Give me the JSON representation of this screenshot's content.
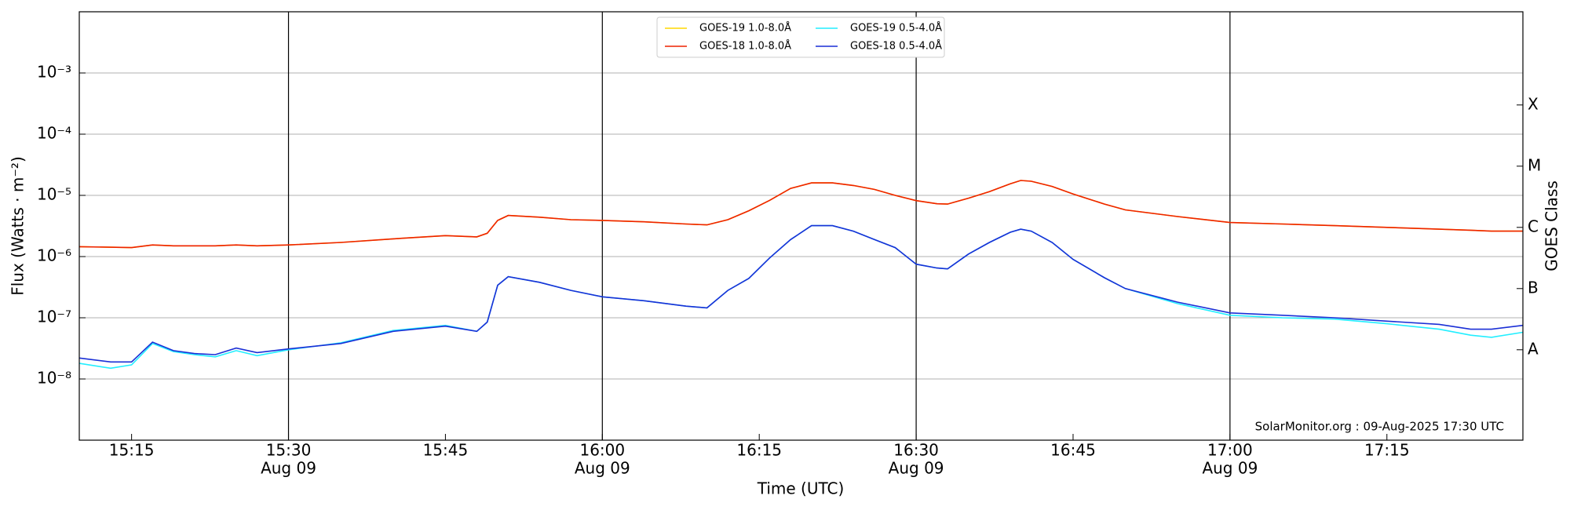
{
  "chart_data": {
    "type": "line",
    "log_y": true,
    "grid": "y",
    "legend": "upper center",
    "xlabel": "Time (UTC)",
    "ylabel": "Flux (Watts · m⁻²)",
    "y2label": "GOES Class",
    "annotation": "SolarMonitor.org : 09-Aug-2025 17:30 UTC",
    "xlim": [
      "15:10",
      "17:28"
    ],
    "xticks": [
      "15:15",
      {
        "value": "15:30",
        "label": "15:30",
        "date": "Aug 09"
      },
      "15:45",
      {
        "value": "16:00",
        "label": "16:00",
        "date": "Aug 09"
      },
      "16:15",
      {
        "value": "16:30",
        "label": "16:30",
        "date": "Aug 09"
      },
      "16:45",
      {
        "value": "17:00",
        "label": "17:00",
        "date": "Aug 09"
      },
      "17:15"
    ],
    "ylim": [
      1e-09,
      0.01
    ],
    "yticks": [
      {
        "value": 1e-08,
        "label": "10⁻⁸"
      },
      {
        "value": 1e-07,
        "label": "10⁻⁷"
      },
      {
        "value": 1e-06,
        "label": "10⁻⁶"
      },
      {
        "value": 1e-05,
        "label": "10⁻⁵"
      },
      {
        "value": 0.0001,
        "label": "10⁻⁴"
      },
      {
        "value": 0.001,
        "label": "10⁻³"
      }
    ],
    "y2lim": [
      1e-09,
      0.01
    ],
    "y2ticks": [
      {
        "value": 3e-08,
        "label": "A"
      },
      {
        "value": 3e-07,
        "label": "B"
      },
      {
        "value": 3e-06,
        "label": "C"
      },
      {
        "value": 3e-05,
        "label": "M"
      },
      {
        "value": 0.0003,
        "label": "X"
      }
    ],
    "x": [
      "15:10",
      "15:13",
      "15:15",
      "15:17",
      "15:19",
      "15:21",
      "15:23",
      "15:25",
      "15:27",
      "15:30",
      "15:35",
      "15:40",
      "15:45",
      "15:48",
      "15:49",
      "15:50",
      "15:51",
      "15:54",
      "15:57",
      "16:00",
      "16:04",
      "16:08",
      "16:10",
      "16:12",
      "16:14",
      "16:16",
      "16:18",
      "16:20",
      "16:22",
      "16:24",
      "16:26",
      "16:28",
      "16:30",
      "16:32",
      "16:33",
      "16:35",
      "16:37",
      "16:39",
      "16:40",
      "16:41",
      "16:43",
      "16:45",
      "16:48",
      "16:50",
      "16:55",
      "17:00",
      "17:05",
      "17:10",
      "17:15",
      "17:20",
      "17:23",
      "17:25",
      "17:28"
    ],
    "series": [
      {
        "name": "GOES-19 1.0-8.0Å",
        "color": "#ffd700",
        "values": [
          1.45e-06,
          1.42e-06,
          1.4e-06,
          1.55e-06,
          1.5e-06,
          1.5e-06,
          1.5e-06,
          1.55e-06,
          1.5e-06,
          1.55e-06,
          1.7e-06,
          1.95e-06,
          2.2e-06,
          2.1e-06,
          2.4e-06,
          3.9e-06,
          4.7e-06,
          4.4e-06,
          4e-06,
          3.9e-06,
          3.7e-06,
          3.4e-06,
          3.3e-06,
          4e-06,
          5.6e-06,
          8.3e-06,
          1.3e-05,
          1.6e-05,
          1.6e-05,
          1.45e-05,
          1.25e-05,
          1e-05,
          8.2e-06,
          7.3e-06,
          7.2e-06,
          9e-06,
          1.15e-05,
          1.55e-05,
          1.75e-05,
          1.7e-05,
          1.4e-05,
          1.05e-05,
          7.2e-06,
          5.8e-06,
          4.5e-06,
          3.6e-06,
          3.4e-06,
          3.2e-06,
          3e-06,
          2.8e-06,
          2.7e-06,
          2.6e-06,
          2.6e-06
        ]
      },
      {
        "name": "GOES-18 1.0-8.0Å",
        "color": "#ee2200",
        "values": [
          1.45e-06,
          1.42e-06,
          1.4e-06,
          1.55e-06,
          1.5e-06,
          1.5e-06,
          1.5e-06,
          1.55e-06,
          1.5e-06,
          1.55e-06,
          1.7e-06,
          1.95e-06,
          2.2e-06,
          2.1e-06,
          2.4e-06,
          3.9e-06,
          4.7e-06,
          4.4e-06,
          4e-06,
          3.9e-06,
          3.7e-06,
          3.4e-06,
          3.3e-06,
          4e-06,
          5.6e-06,
          8.3e-06,
          1.3e-05,
          1.6e-05,
          1.6e-05,
          1.45e-05,
          1.25e-05,
          1e-05,
          8.2e-06,
          7.3e-06,
          7.2e-06,
          9e-06,
          1.15e-05,
          1.55e-05,
          1.75e-05,
          1.7e-05,
          1.4e-05,
          1.05e-05,
          7.2e-06,
          5.8e-06,
          4.5e-06,
          3.6e-06,
          3.4e-06,
          3.2e-06,
          3e-06,
          2.8e-06,
          2.7e-06,
          2.6e-06,
          2.6e-06
        ]
      },
      {
        "name": "GOES-19 0.5-4.0Å",
        "color": "#22eeff",
        "values": [
          1.8e-08,
          1.5e-08,
          1.7e-08,
          3.8e-08,
          2.8e-08,
          2.5e-08,
          2.3e-08,
          2.9e-08,
          2.4e-08,
          3e-08,
          3.9e-08,
          6.2e-08,
          7.5e-08,
          6e-08,
          8.5e-08,
          3.4e-07,
          4.7e-07,
          3.8e-07,
          2.8e-07,
          2.2e-07,
          1.9e-07,
          1.55e-07,
          1.45e-07,
          2.8e-07,
          4.4e-07,
          9.5e-07,
          1.9e-06,
          3.2e-06,
          3.2e-06,
          2.6e-06,
          1.9e-06,
          1.4e-06,
          7.5e-07,
          6.5e-07,
          6.3e-07,
          1.1e-06,
          1.7e-06,
          2.5e-06,
          2.8e-06,
          2.6e-06,
          1.7e-06,
          9e-07,
          4.5e-07,
          3e-07,
          1.7e-07,
          1.1e-07,
          1e-07,
          9.5e-08,
          8e-08,
          6.5e-08,
          5.2e-08,
          4.8e-08,
          5.8e-08
        ]
      },
      {
        "name": "GOES-18 0.5-4.0Å",
        "color": "#1a2fd6",
        "values": [
          2.2e-08,
          1.9e-08,
          1.9e-08,
          4e-08,
          2.9e-08,
          2.6e-08,
          2.5e-08,
          3.2e-08,
          2.7e-08,
          3.1e-08,
          3.8e-08,
          6e-08,
          7.3e-08,
          6e-08,
          8.5e-08,
          3.4e-07,
          4.7e-07,
          3.8e-07,
          2.8e-07,
          2.2e-07,
          1.9e-07,
          1.55e-07,
          1.45e-07,
          2.8e-07,
          4.4e-07,
          9.5e-07,
          1.9e-06,
          3.2e-06,
          3.2e-06,
          2.6e-06,
          1.9e-06,
          1.4e-06,
          7.5e-07,
          6.5e-07,
          6.3e-07,
          1.1e-06,
          1.7e-06,
          2.5e-06,
          2.8e-06,
          2.6e-06,
          1.7e-06,
          9e-07,
          4.5e-07,
          3e-07,
          1.8e-07,
          1.2e-07,
          1.1e-07,
          1e-07,
          8.8e-08,
          7.8e-08,
          6.5e-08,
          6.5e-08,
          7.5e-08
        ]
      }
    ]
  }
}
